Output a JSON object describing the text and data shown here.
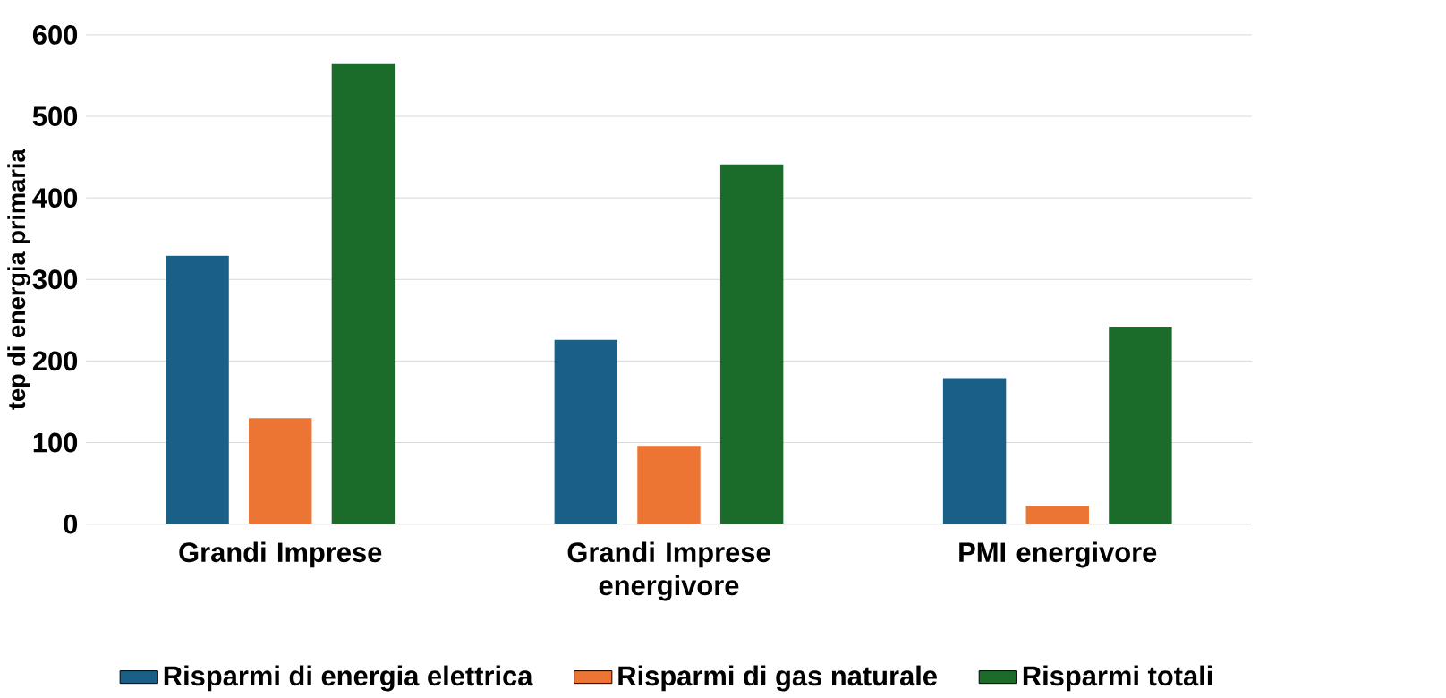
{
  "chart_data": {
    "type": "bar",
    "ylabel": "tep di energia primaria",
    "categories": [
      "Grandi Imprese",
      "Grandi Imprese energivore",
      "PMI energivore"
    ],
    "series": [
      {
        "name": "Risparmi di energia elettrica",
        "color": "#1a5f86",
        "values": [
          329,
          226,
          179
        ]
      },
      {
        "name": "Risparmi di gas naturale",
        "color": "#ec7533",
        "values": [
          130,
          96,
          22
        ]
      },
      {
        "name": "Risparmi totali",
        "color": "#1b6b2b",
        "values": [
          565,
          441,
          242
        ]
      }
    ],
    "ylim": [
      0,
      600
    ],
    "yticks": [
      0,
      100,
      200,
      300,
      400,
      500,
      600
    ],
    "grid": "y",
    "legend": "bottom"
  }
}
